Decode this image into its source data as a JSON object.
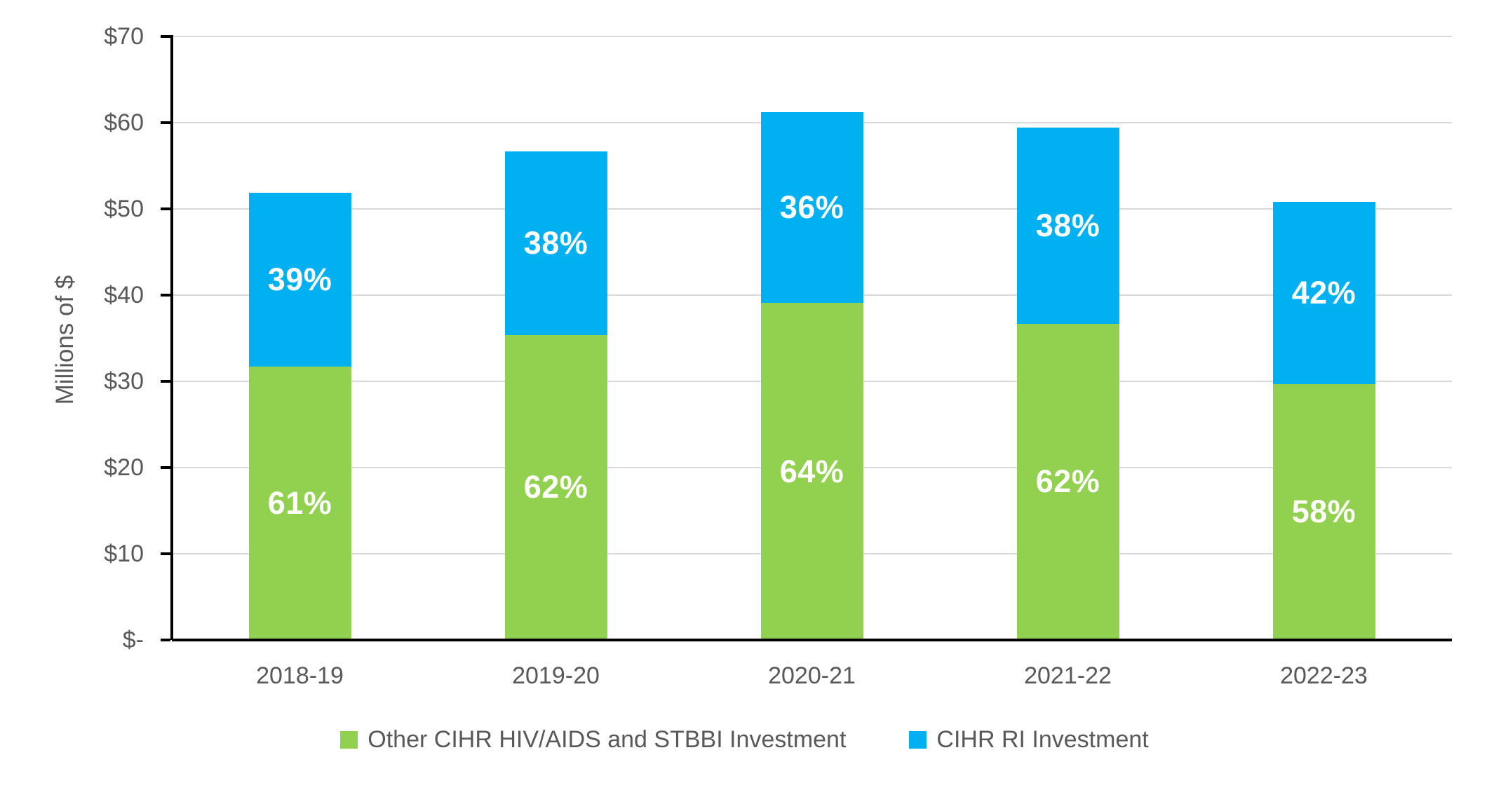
{
  "chart_data": {
    "type": "bar",
    "stacked": true,
    "title": "",
    "xlabel": "",
    "ylabel": "Millions of $",
    "ylim": [
      0,
      70
    ],
    "y_tick_step": 10,
    "y_ticks": [
      {
        "value": 70,
        "label": "$70"
      },
      {
        "value": 60,
        "label": "$60"
      },
      {
        "value": 50,
        "label": "$50"
      },
      {
        "value": 40,
        "label": "$40"
      },
      {
        "value": 30,
        "label": "$30"
      },
      {
        "value": 20,
        "label": "$20"
      },
      {
        "value": 10,
        "label": "$10"
      },
      {
        "value": 0,
        "label": "$-"
      }
    ],
    "grid": true,
    "legend_position": "bottom",
    "categories": [
      "2018-19",
      "2019-20",
      "2020-21",
      "2021-22",
      "2022-23"
    ],
    "series": [
      {
        "name": "Other CIHR HIV/AIDS and STBBI Investment",
        "color": "#92D050",
        "values": [
          31.7,
          35.4,
          39.1,
          36.7,
          29.7
        ],
        "data_labels": [
          "61%",
          "62%",
          "64%",
          "62%",
          "58%"
        ]
      },
      {
        "name": "CIHR RI Investment",
        "color": "#00B0F0",
        "values": [
          20.2,
          21.3,
          22.1,
          22.7,
          21.1
        ],
        "data_labels": [
          "39%",
          "38%",
          "36%",
          "38%",
          "42%"
        ]
      }
    ],
    "totals": [
      51.9,
      56.7,
      61.2,
      59.4,
      50.8
    ],
    "colors": {
      "axis": "#000000",
      "gridline": "#D9D9D9",
      "tick_label_text": "#595959",
      "bar_label_text": "#FFFFFF",
      "legend_text": "#595959",
      "background": "#FFFFFF"
    }
  }
}
